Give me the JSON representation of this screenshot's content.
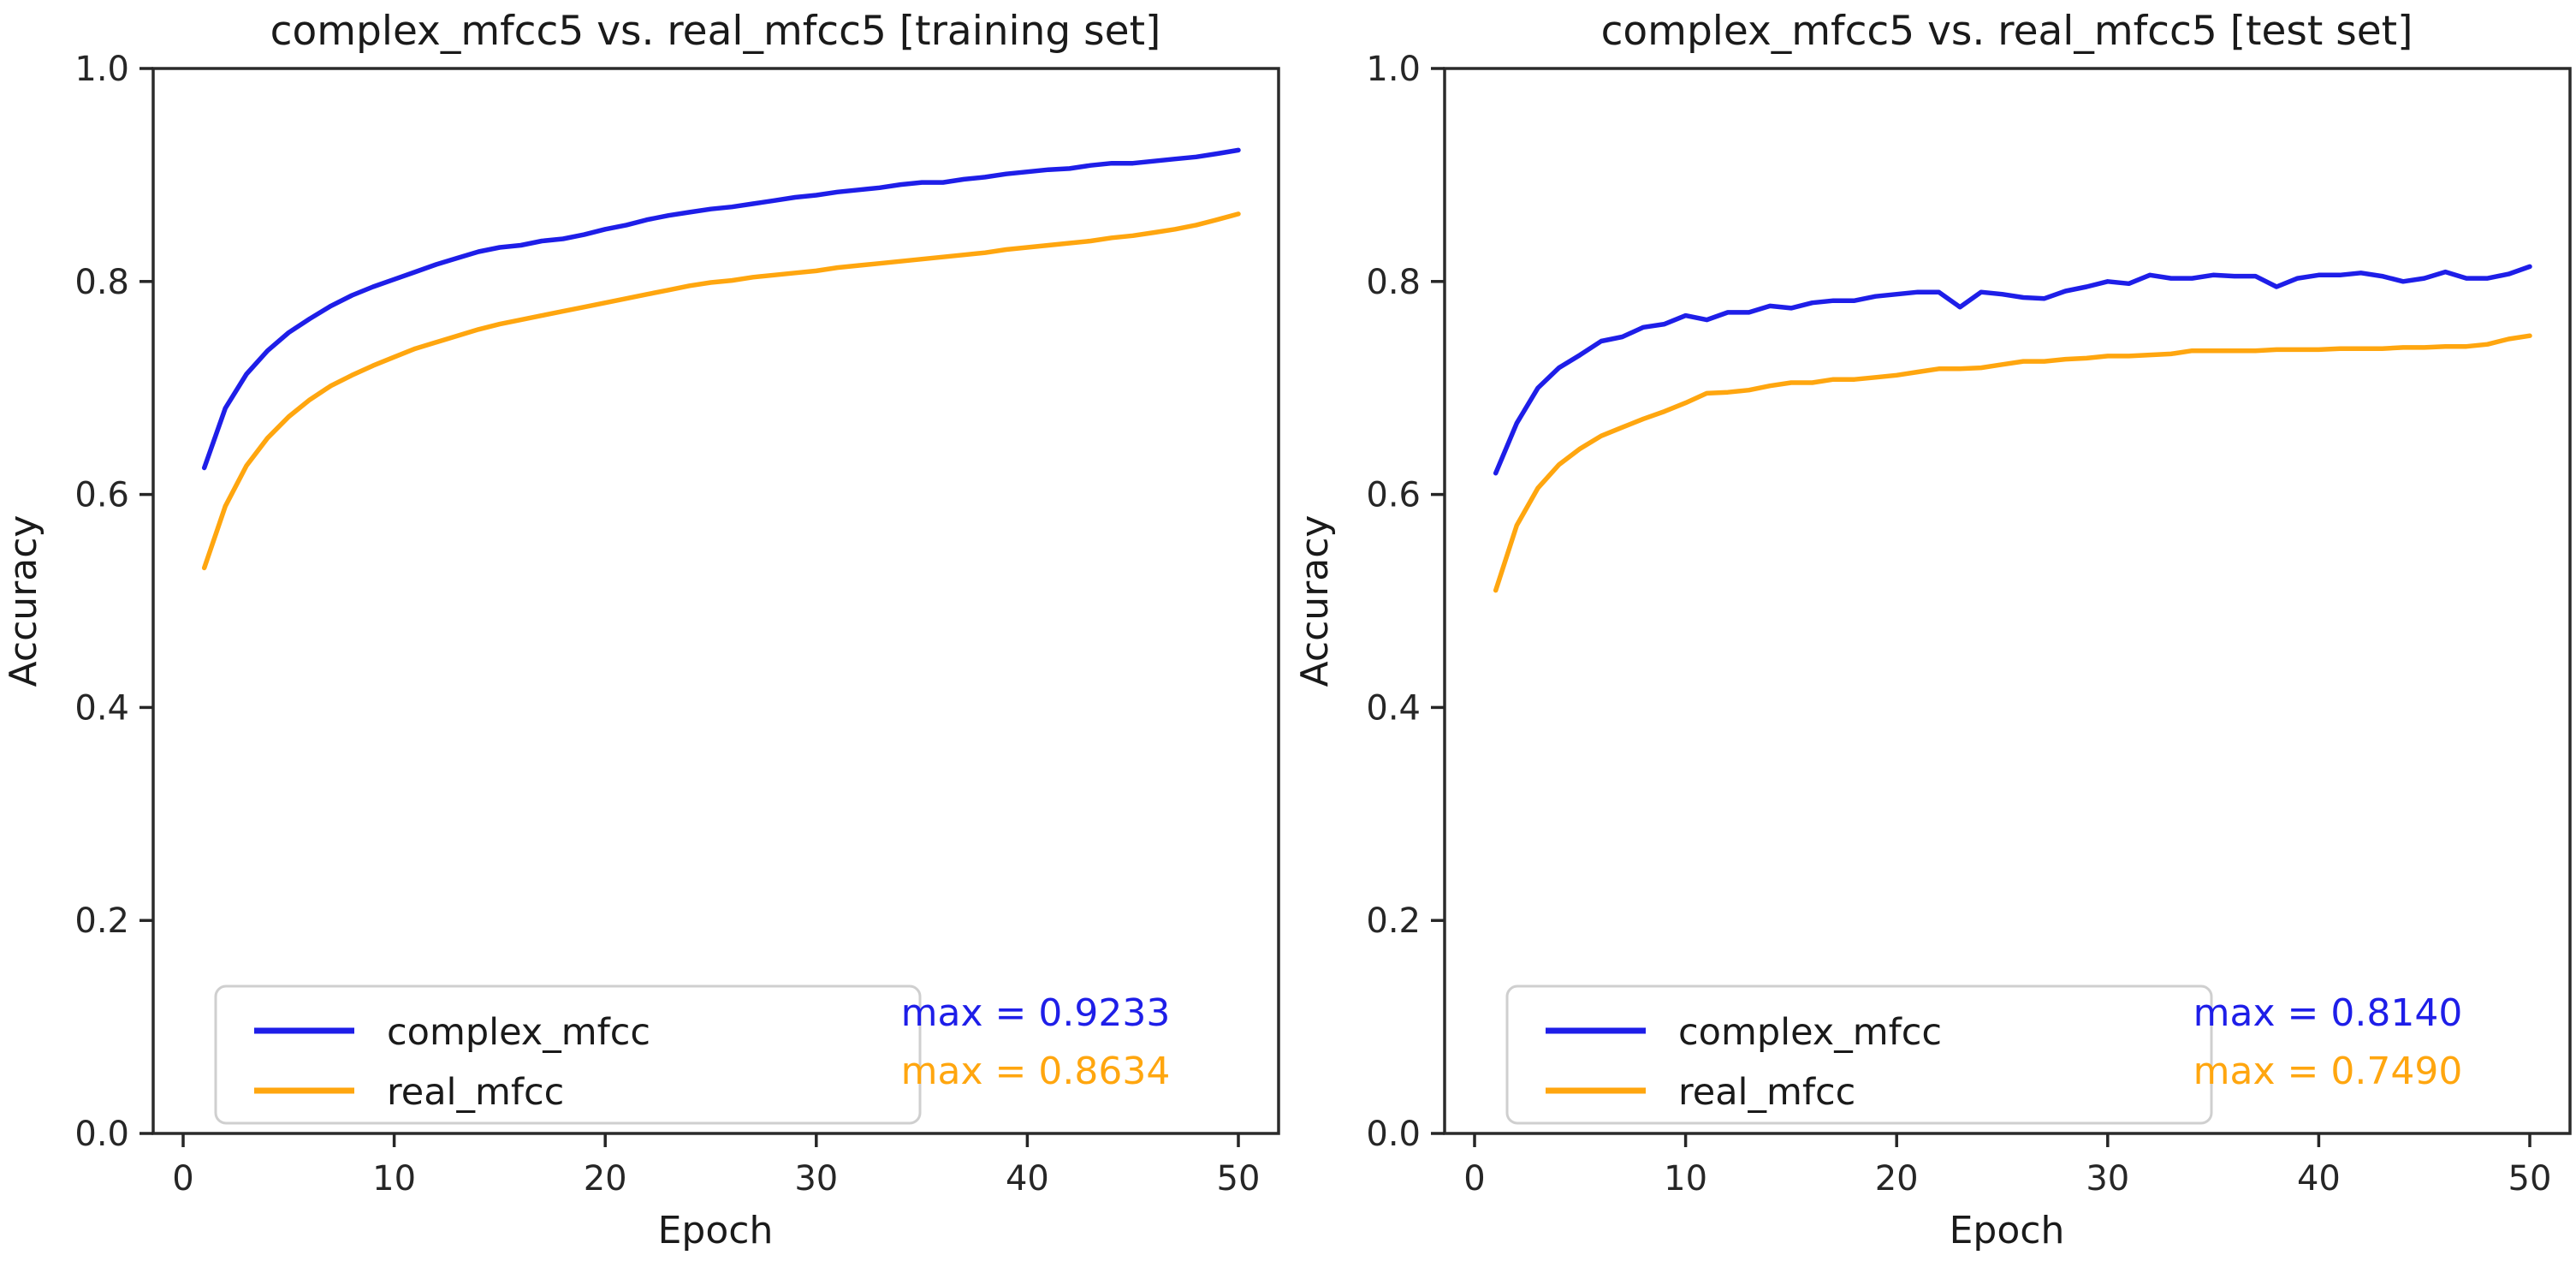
{
  "figure": {
    "background": "#ffffff",
    "axis_color": "#262626",
    "text_color": "#1a1a1a",
    "blue": "#1e1ee8",
    "orange": "#ffa60f"
  },
  "chart_data": [
    {
      "type": "line",
      "title": "complex_mfcc5 vs. real_mfcc5 [training set]",
      "xlabel": "Epoch",
      "ylabel": "Accuracy",
      "xlim": [
        0,
        50
      ],
      "ylim": [
        0.0,
        1.0
      ],
      "x_ticks": [
        0,
        10,
        20,
        30,
        40,
        50
      ],
      "y_ticks": [
        "0.0",
        "0.2",
        "0.4",
        "0.6",
        "0.8",
        "1.0"
      ],
      "grid": false,
      "legend_position": "lower left",
      "x": [
        1,
        2,
        3,
        4,
        5,
        6,
        7,
        8,
        9,
        10,
        11,
        12,
        13,
        14,
        15,
        16,
        17,
        18,
        19,
        20,
        21,
        22,
        23,
        24,
        25,
        26,
        27,
        28,
        29,
        30,
        31,
        32,
        33,
        34,
        35,
        36,
        37,
        38,
        39,
        40,
        41,
        42,
        43,
        44,
        45,
        46,
        47,
        48,
        49,
        50
      ],
      "series": [
        {
          "name": "complex_mfcc",
          "color": "#1e1ee8",
          "max": 0.9233,
          "values": [
            0.625,
            0.681,
            0.713,
            0.735,
            0.752,
            0.765,
            0.777,
            0.787,
            0.795,
            0.802,
            0.809,
            0.816,
            0.822,
            0.828,
            0.832,
            0.834,
            0.838,
            0.84,
            0.844,
            0.849,
            0.853,
            0.858,
            0.862,
            0.865,
            0.868,
            0.87,
            0.873,
            0.876,
            0.879,
            0.881,
            0.884,
            0.886,
            0.888,
            0.891,
            0.893,
            0.893,
            0.896,
            0.898,
            0.901,
            0.903,
            0.905,
            0.906,
            0.909,
            0.911,
            0.911,
            0.913,
            0.915,
            0.917,
            0.92,
            0.9233
          ]
        },
        {
          "name": "real_mfcc",
          "color": "#ffa60f",
          "max": 0.8634,
          "values": [
            0.531,
            0.589,
            0.627,
            0.653,
            0.673,
            0.689,
            0.702,
            0.712,
            0.721,
            0.729,
            0.737,
            0.743,
            0.749,
            0.755,
            0.76,
            0.764,
            0.768,
            0.772,
            0.776,
            0.78,
            0.784,
            0.788,
            0.792,
            0.796,
            0.799,
            0.801,
            0.804,
            0.806,
            0.808,
            0.81,
            0.813,
            0.815,
            0.817,
            0.819,
            0.821,
            0.823,
            0.825,
            0.827,
            0.83,
            0.832,
            0.834,
            0.836,
            0.838,
            0.841,
            0.843,
            0.846,
            0.849,
            0.853,
            0.858,
            0.8634
          ]
        }
      ],
      "annotations": [
        {
          "text": "max = 0.9233",
          "color": "#1e1ee8"
        },
        {
          "text": "max = 0.8634",
          "color": "#ffa60f"
        }
      ]
    },
    {
      "type": "line",
      "title": "complex_mfcc5 vs. real_mfcc5 [test set]",
      "xlabel": "Epoch",
      "ylabel": "Accuracy",
      "xlim": [
        0,
        50
      ],
      "ylim": [
        0.0,
        1.0
      ],
      "x_ticks": [
        0,
        10,
        20,
        30,
        40,
        50
      ],
      "y_ticks": [
        "0.0",
        "0.2",
        "0.4",
        "0.6",
        "0.8",
        "1.0"
      ],
      "grid": false,
      "legend_position": "lower left",
      "x": [
        1,
        2,
        3,
        4,
        5,
        6,
        7,
        8,
        9,
        10,
        11,
        12,
        13,
        14,
        15,
        16,
        17,
        18,
        19,
        20,
        21,
        22,
        23,
        24,
        25,
        26,
        27,
        28,
        29,
        30,
        31,
        32,
        33,
        34,
        35,
        36,
        37,
        38,
        39,
        40,
        41,
        42,
        43,
        44,
        45,
        46,
        47,
        48,
        49,
        50
      ],
      "series": [
        {
          "name": "complex_mfcc",
          "color": "#1e1ee8",
          "max": 0.814,
          "values": [
            0.62,
            0.667,
            0.7,
            0.719,
            0.731,
            0.744,
            0.748,
            0.757,
            0.76,
            0.768,
            0.764,
            0.771,
            0.771,
            0.777,
            0.775,
            0.78,
            0.782,
            0.782,
            0.786,
            0.788,
            0.79,
            0.79,
            0.776,
            0.79,
            0.788,
            0.785,
            0.784,
            0.791,
            0.795,
            0.8,
            0.798,
            0.806,
            0.803,
            0.803,
            0.806,
            0.805,
            0.805,
            0.795,
            0.803,
            0.806,
            0.806,
            0.808,
            0.805,
            0.8,
            0.803,
            0.809,
            0.803,
            0.803,
            0.807,
            0.814
          ]
        },
        {
          "name": "real_mfcc",
          "color": "#ffa60f",
          "max": 0.749,
          "values": [
            0.51,
            0.571,
            0.606,
            0.628,
            0.643,
            0.655,
            0.663,
            0.671,
            0.678,
            0.686,
            0.695,
            0.696,
            0.698,
            0.702,
            0.705,
            0.705,
            0.708,
            0.708,
            0.71,
            0.712,
            0.715,
            0.718,
            0.718,
            0.719,
            0.722,
            0.725,
            0.725,
            0.727,
            0.728,
            0.73,
            0.73,
            0.731,
            0.732,
            0.735,
            0.735,
            0.735,
            0.735,
            0.736,
            0.736,
            0.736,
            0.737,
            0.737,
            0.737,
            0.738,
            0.738,
            0.739,
            0.739,
            0.741,
            0.746,
            0.749
          ]
        }
      ],
      "annotations": [
        {
          "text": "max = 0.8140",
          "color": "#1e1ee8"
        },
        {
          "text": "max = 0.7490",
          "color": "#ffa60f"
        }
      ]
    }
  ]
}
